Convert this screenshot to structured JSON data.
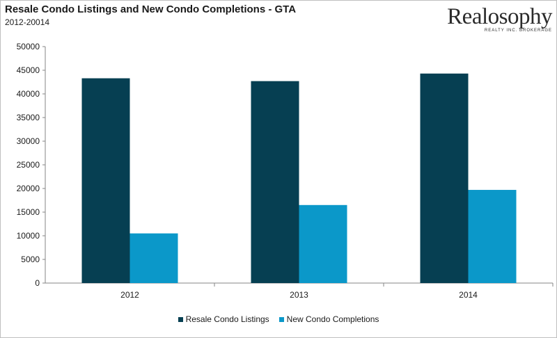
{
  "colors": {
    "resale": "#063f52",
    "new": "#0b98c9"
  },
  "logo": {
    "name": "Realosophy",
    "tagline": "REALTY INC. BROKERAGE"
  },
  "chart_data": {
    "type": "bar",
    "title": "Resale Condo Listings and New Condo Completions - GTA",
    "subtitle": "2012-20014",
    "categories": [
      "2012",
      "2013",
      "2014"
    ],
    "series": [
      {
        "name": "Resale Condo Listings",
        "values": [
          43300,
          42700,
          44300
        ]
      },
      {
        "name": "New Condo Completions",
        "values": [
          10500,
          16500,
          19700
        ]
      }
    ],
    "ylim": [
      0,
      50000
    ],
    "yticks": [
      "0",
      "5000",
      "10000",
      "15000",
      "20000",
      "25000",
      "30000",
      "35000",
      "40000",
      "45000",
      "50000"
    ],
    "legend": "bottom",
    "grid": false
  }
}
